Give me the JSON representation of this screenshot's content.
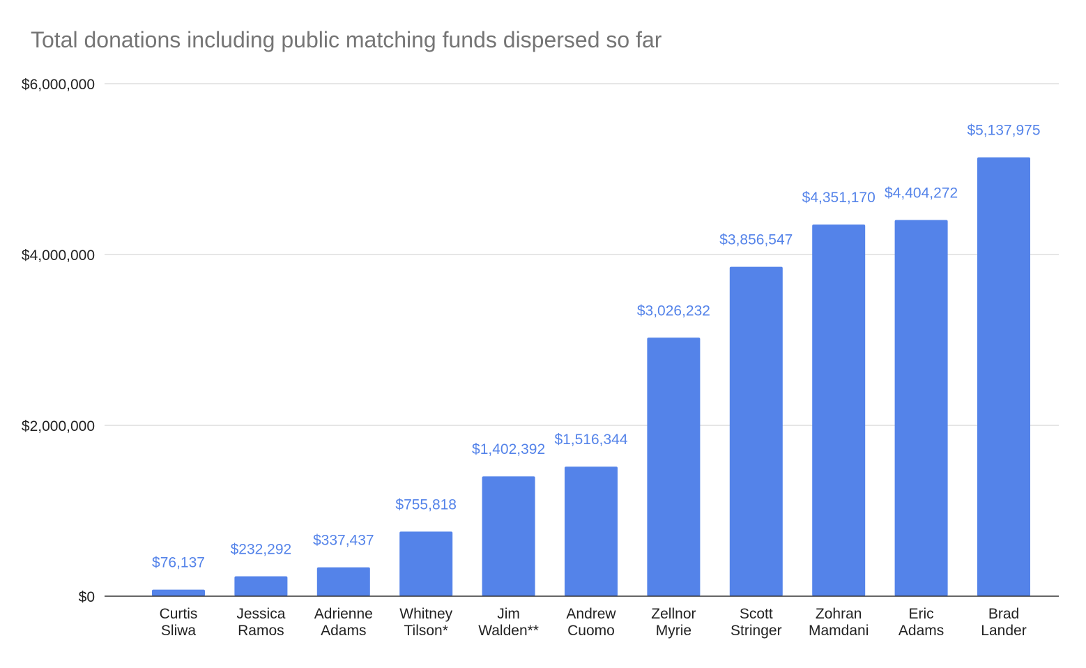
{
  "chart_data": {
    "type": "bar",
    "title": "Total donations including public matching funds dispersed so far",
    "xlabel": "",
    "ylabel": "",
    "ylim": [
      0,
      6000000
    ],
    "grid": true,
    "bar_color": "#5483e9",
    "yticks": [
      {
        "value": 0,
        "label": "$0"
      },
      {
        "value": 2000000,
        "label": "$2,000,000"
      },
      {
        "value": 4000000,
        "label": "$4,000,000"
      },
      {
        "value": 6000000,
        "label": "$6,000,000"
      }
    ],
    "categories": [
      [
        "Curtis",
        "Sliwa"
      ],
      [
        "Jessica",
        "Ramos"
      ],
      [
        "Adrienne",
        "Adams"
      ],
      [
        "Whitney",
        "Tilson*"
      ],
      [
        "Jim",
        "Walden**"
      ],
      [
        "Andrew",
        "Cuomo"
      ],
      [
        "Zellnor",
        "Myrie"
      ],
      [
        "Scott",
        "Stringer"
      ],
      [
        "Zohran",
        "Mamdani"
      ],
      [
        "Eric",
        "Adams"
      ],
      [
        "Brad",
        "Lander"
      ]
    ],
    "values": [
      76137,
      232292,
      337437,
      755818,
      1402392,
      1516344,
      3026232,
      3856547,
      4351170,
      4404272,
      5137975
    ],
    "data_labels": [
      "$76,137",
      "$232,292",
      "$337,437",
      "$755,818",
      "$1,402,392",
      "$1,516,344",
      "$3,026,232",
      "$3,856,547",
      "$4,351,170",
      "$4,404,272",
      "$5,137,975"
    ]
  }
}
